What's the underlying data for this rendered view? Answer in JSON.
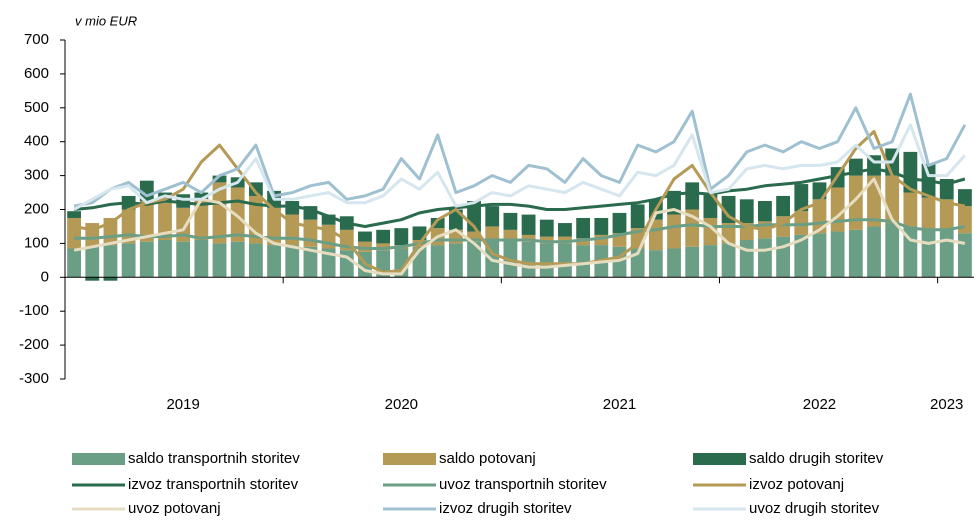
{
  "chart_data": {
    "type": "combo",
    "subtitle": "v mio EUR",
    "categories": [
      null,
      null,
      null,
      null,
      null,
      null,
      "2019",
      null,
      null,
      null,
      null,
      null,
      null,
      null,
      null,
      null,
      null,
      null,
      "2020",
      null,
      null,
      null,
      null,
      null,
      null,
      null,
      null,
      null,
      null,
      null,
      "2021",
      null,
      null,
      null,
      null,
      null,
      null,
      null,
      null,
      null,
      null,
      "2022",
      null,
      null,
      null,
      null,
      null,
      null,
      "2023",
      null
    ],
    "ylim": [
      -300,
      700
    ],
    "yticks": [
      -300,
      -200,
      -100,
      0,
      100,
      200,
      300,
      400,
      500,
      600,
      700
    ],
    "series": [
      {
        "name": "saldo transportnih storitev",
        "type": "bar",
        "color": "#6a9e85",
        "values": [
          85,
          90,
          95,
          100,
          105,
          110,
          105,
          110,
          100,
          105,
          100,
          95,
          95,
          90,
          85,
          80,
          75,
          80,
          85,
          90,
          95,
          100,
          105,
          110,
          110,
          105,
          100,
          100,
          95,
          95,
          90,
          85,
          80,
          85,
          90,
          95,
          100,
          110,
          115,
          120,
          125,
          130,
          135,
          140,
          150,
          160,
          150,
          145,
          140,
          130
        ]
      },
      {
        "name": "saldo potovanj",
        "type": "bar",
        "color": "#b59a56",
        "values": [
          90,
          70,
          80,
          100,
          120,
          110,
          100,
          120,
          180,
          160,
          140,
          110,
          90,
          80,
          70,
          60,
          30,
          20,
          10,
          20,
          50,
          40,
          30,
          40,
          30,
          20,
          20,
          20,
          20,
          30,
          40,
          60,
          90,
          100,
          110,
          80,
          60,
          50,
          50,
          60,
          70,
          100,
          130,
          160,
          150,
          140,
          100,
          90,
          90,
          80
        ]
      },
      {
        "name": "saldo drugih storitev",
        "type": "bar",
        "color": "#2a6a4d",
        "values": [
          20,
          -10,
          -10,
          40,
          60,
          30,
          40,
          20,
          20,
          30,
          40,
          50,
          40,
          40,
          30,
          40,
          30,
          40,
          50,
          40,
          30,
          60,
          90,
          60,
          50,
          60,
          50,
          40,
          60,
          50,
          60,
          70,
          60,
          70,
          80,
          70,
          80,
          70,
          60,
          60,
          80,
          50,
          60,
          50,
          60,
          80,
          120,
          100,
          60,
          50
        ]
      },
      {
        "name": "izvoz transportnih storitev",
        "type": "line",
        "color": "#2a6a4d",
        "values": [
          200,
          205,
          215,
          220,
          215,
          225,
          220,
          215,
          220,
          225,
          215,
          210,
          210,
          200,
          180,
          160,
          150,
          160,
          170,
          190,
          200,
          205,
          210,
          215,
          215,
          210,
          200,
          200,
          205,
          210,
          215,
          220,
          230,
          245,
          250,
          245,
          255,
          260,
          270,
          275,
          280,
          290,
          300,
          310,
          320,
          310,
          290,
          285,
          275,
          290
        ]
      },
      {
        "name": "uvoz transportnih storitev",
        "type": "line",
        "color": "#6a9e85",
        "values": [
          115,
          115,
          120,
          125,
          120,
          120,
          125,
          115,
          120,
          125,
          120,
          115,
          115,
          110,
          100,
          90,
          85,
          85,
          90,
          100,
          110,
          110,
          110,
          110,
          110,
          110,
          105,
          105,
          110,
          115,
          125,
          135,
          140,
          150,
          155,
          150,
          150,
          150,
          155,
          155,
          155,
          160,
          165,
          170,
          170,
          165,
          145,
          140,
          140,
          150
        ]
      },
      {
        "name": "izvoz potovanj",
        "type": "line",
        "color": "#b59a56",
        "values": [
          150,
          140,
          160,
          200,
          220,
          230,
          260,
          340,
          390,
          320,
          250,
          200,
          160,
          150,
          140,
          110,
          40,
          15,
          20,
          100,
          170,
          200,
          150,
          70,
          50,
          40,
          40,
          40,
          40,
          50,
          60,
          100,
          200,
          290,
          330,
          250,
          180,
          150,
          140,
          160,
          200,
          220,
          300,
          380,
          430,
          300,
          260,
          240,
          220,
          210
        ]
      },
      {
        "name": "uvoz potovanj",
        "type": "line",
        "color": "#e6dcc0",
        "values": [
          80,
          90,
          100,
          110,
          120,
          130,
          140,
          230,
          220,
          180,
          130,
          100,
          90,
          80,
          70,
          60,
          20,
          10,
          10,
          80,
          120,
          140,
          100,
          50,
          40,
          30,
          30,
          35,
          40,
          45,
          50,
          70,
          190,
          200,
          180,
          150,
          100,
          80,
          80,
          90,
          110,
          140,
          180,
          230,
          290,
          170,
          110,
          100,
          110,
          100
        ]
      },
      {
        "name": "izvoz drugih storitev",
        "type": "line",
        "color": "#9fc0d0",
        "values": [
          210,
          220,
          260,
          280,
          240,
          260,
          280,
          250,
          300,
          320,
          390,
          240,
          250,
          270,
          280,
          230,
          240,
          260,
          350,
          290,
          420,
          250,
          270,
          300,
          280,
          330,
          320,
          280,
          350,
          300,
          280,
          390,
          370,
          400,
          490,
          260,
          300,
          370,
          390,
          370,
          400,
          380,
          400,
          500,
          380,
          400,
          540,
          330,
          350,
          450
        ]
      },
      {
        "name": "uvoz drugih storitev",
        "type": "line",
        "color": "#d5e6ee",
        "values": [
          200,
          230,
          260,
          270,
          220,
          240,
          230,
          230,
          260,
          280,
          350,
          230,
          230,
          240,
          250,
          220,
          220,
          240,
          290,
          260,
          310,
          210,
          220,
          250,
          240,
          270,
          260,
          250,
          280,
          260,
          240,
          310,
          300,
          330,
          420,
          250,
          260,
          320,
          330,
          320,
          330,
          330,
          340,
          390,
          340,
          340,
          450,
          300,
          300,
          360
        ]
      }
    ]
  }
}
